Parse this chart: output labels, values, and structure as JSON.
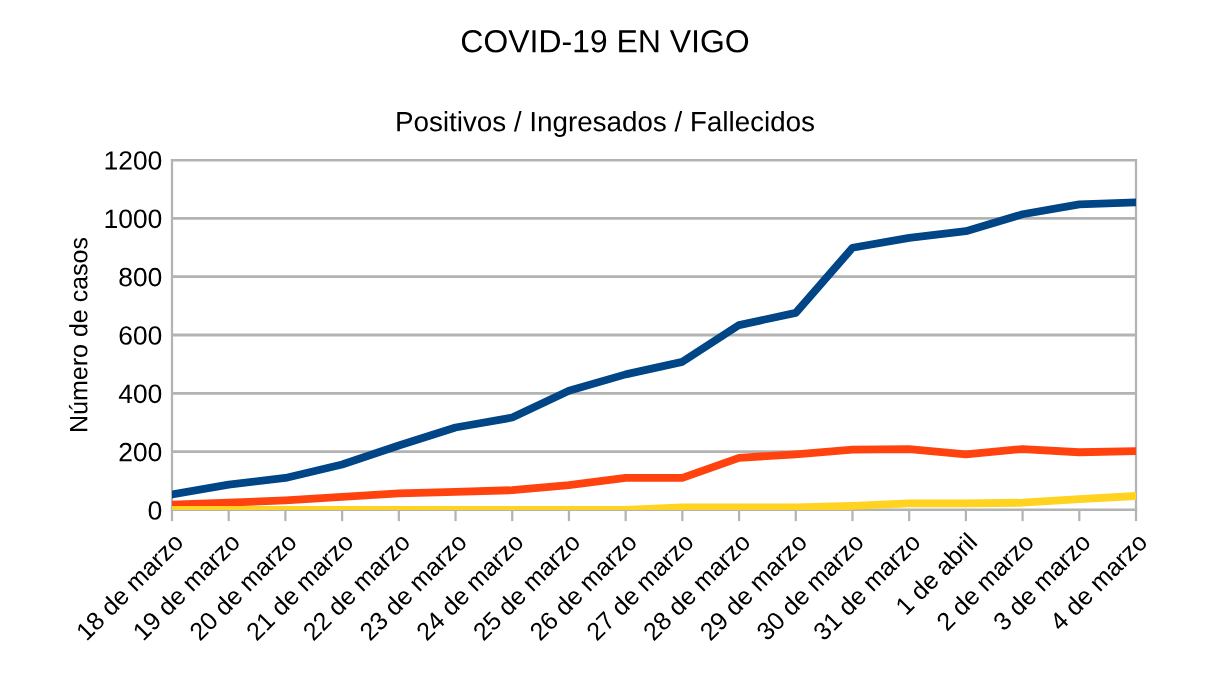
{
  "chart_data": {
    "type": "line",
    "title": "COVID-19 EN VIGO",
    "subtitle": "Positivos / Ingresados / Fallecidos",
    "ylabel": "Número de casos",
    "categories": [
      "18 de marzo",
      "19 de marzo",
      "20 de marzo",
      "21 de marzo",
      "22 de marzo",
      "23 de marzo",
      "24 de marzo",
      "25 de marzo",
      "26 de marzo",
      "27 de marzo",
      "28 de marzo",
      "29 de marzo",
      "30 de marzo",
      "31 de marzo",
      "1 de abril",
      "2 de marzo",
      "3 de marzo",
      "4 de marzo"
    ],
    "series": [
      {
        "color": "#004586",
        "values": [
          53,
          87,
          110,
          156,
          221,
          283,
          317,
          409,
          465,
          508,
          634,
          676,
          899,
          933,
          956,
          1014,
          1048,
          1055
        ]
      },
      {
        "color": "#ff420e",
        "values": [
          18,
          25,
          33,
          45,
          57,
          62,
          68,
          85,
          110,
          110,
          179,
          191,
          207,
          209,
          191,
          209,
          198,
          202
        ]
      },
      {
        "color": "#ffd320",
        "values": [
          0,
          0,
          0,
          0,
          0,
          0,
          0,
          0,
          0,
          9,
          9,
          9,
          14,
          23,
          23,
          25,
          37,
          48
        ]
      }
    ],
    "ylim": [
      0,
      1200
    ],
    "yticks": [
      0,
      200,
      400,
      600,
      800,
      1000,
      1200
    ],
    "grid": "y",
    "marker": "none",
    "line_style": "solid"
  }
}
